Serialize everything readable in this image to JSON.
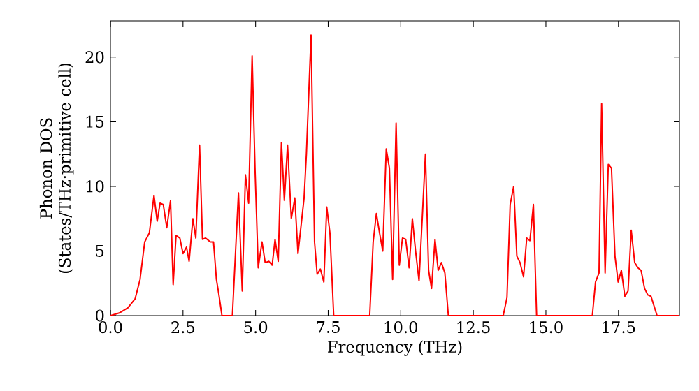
{
  "chart_data": {
    "type": "line",
    "xlabel": "Frequency (THz)",
    "ylabel": "Phonon DOS (States/THz·primitive cell)",
    "color": "#ff0000",
    "line_style": "solid",
    "grid": false,
    "xlim": [
      0,
      19.6
    ],
    "ylim": [
      0,
      22.8
    ],
    "xticks": [
      {
        "value": 0,
        "label": "0.0"
      },
      {
        "value": 2.5,
        "label": "2.5"
      },
      {
        "value": 5,
        "label": "5.0"
      },
      {
        "value": 7.5,
        "label": "7.5"
      },
      {
        "value": 10,
        "label": "10.0"
      },
      {
        "value": 12.5,
        "label": "12.5"
      },
      {
        "value": 15,
        "label": "15.0"
      },
      {
        "value": 17.5,
        "label": "17.5"
      }
    ],
    "yticks": [
      0,
      5,
      10,
      15,
      20
    ],
    "x": [
      0,
      0.3,
      0.6,
      0.85,
      1.02,
      1.18,
      1.34,
      1.5,
      1.61,
      1.71,
      1.82,
      1.94,
      2.07,
      2.16,
      2.26,
      2.39,
      2.5,
      2.62,
      2.71,
      2.84,
      2.94,
      3.07,
      3.17,
      3.28,
      3.44,
      3.55,
      3.65,
      3.73,
      3.84,
      4.2,
      4.41,
      4.54,
      4.65,
      4.76,
      4.88,
      4.98,
      5.09,
      5.22,
      5.33,
      5.46,
      5.57,
      5.67,
      5.78,
      5.89,
      5.99,
      6.1,
      6.23,
      6.35,
      6.46,
      6.67,
      6.75,
      6.91,
      7.03,
      7.12,
      7.23,
      7.35,
      7.45,
      7.56,
      7.69,
      8.93,
      9.05,
      9.16,
      9.27,
      9.38,
      9.5,
      9.61,
      9.72,
      9.84,
      9.95,
      10.06,
      10.17,
      10.29,
      10.4,
      10.51,
      10.63,
      10.74,
      10.85,
      10.96,
      11.06,
      11.18,
      11.29,
      11.4,
      11.52,
      11.64,
      13.53,
      13.66,
      13.77,
      13.89,
      14.0,
      14.11,
      14.23,
      14.34,
      14.45,
      14.57,
      14.68,
      16.6,
      16.71,
      16.83,
      16.92,
      17.04,
      17.15,
      17.26,
      17.38,
      17.49,
      17.6,
      17.72,
      17.83,
      17.94,
      18.06,
      18.17,
      18.28,
      18.4,
      18.51,
      18.62,
      18.83,
      19.6
    ],
    "values": [
      0,
      0.2,
      0.6,
      1.3,
      2.8,
      5.7,
      6.4,
      9.3,
      7.3,
      8.7,
      8.6,
      6.8,
      8.9,
      2.4,
      6.2,
      6.0,
      4.8,
      5.3,
      4.2,
      7.5,
      6.0,
      13.2,
      5.9,
      6.0,
      5.7,
      5.7,
      2.8,
      1.7,
      0,
      0,
      9.5,
      1.9,
      10.9,
      8.7,
      20.1,
      11.4,
      3.7,
      5.7,
      4.1,
      4.2,
      3.9,
      5.9,
      4.2,
      13.4,
      8.9,
      13.2,
      7.5,
      9.1,
      4.8,
      9.1,
      12.5,
      21.7,
      5.7,
      3.2,
      3.6,
      2.6,
      8.4,
      6.4,
      0,
      0,
      5.7,
      7.9,
      6.4,
      5.0,
      12.9,
      11.4,
      2.8,
      14.9,
      3.9,
      6.0,
      5.9,
      3.7,
      7.5,
      5.0,
      2.7,
      7.5,
      12.5,
      3.5,
      2.1,
      5.9,
      3.5,
      4.1,
      3.3,
      0,
      0,
      1.4,
      8.6,
      10.0,
      4.6,
      4.1,
      3.0,
      6.0,
      5.8,
      8.6,
      0,
      0,
      2.6,
      3.3,
      16.4,
      3.3,
      11.7,
      11.4,
      4.6,
      2.6,
      3.5,
      1.5,
      1.9,
      6.6,
      4.1,
      3.7,
      3.5,
      2.1,
      1.6,
      1.5,
      0,
      0
    ]
  }
}
